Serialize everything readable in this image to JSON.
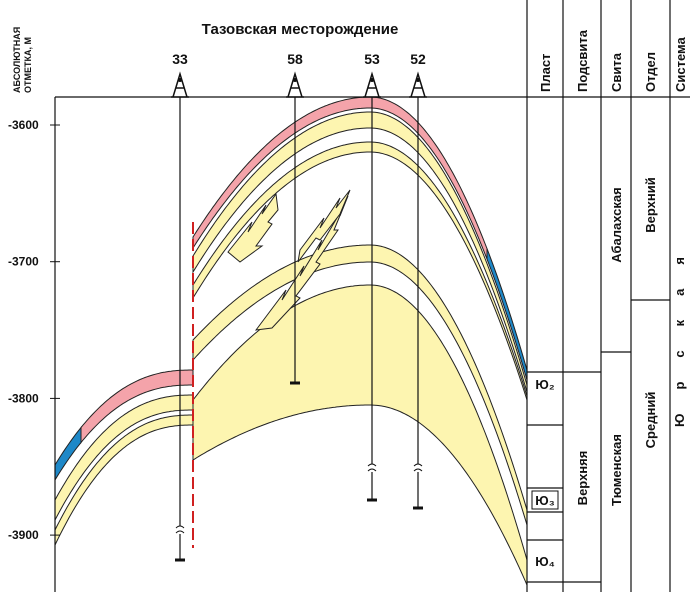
{
  "title": "Тазовская месторождение",
  "axis": {
    "label_lines": [
      "АБСОЛЮТНАЯ",
      "ОТМЕТКА, М"
    ],
    "ticks": [
      -3600,
      -3700,
      -3800,
      -3900
    ]
  },
  "wells": [
    "33",
    "58",
    "53",
    "52"
  ],
  "columns": {
    "headers": [
      "Пласт",
      "Подсвита",
      "Свита",
      "Отдел",
      "Система"
    ],
    "plast": [
      "Ю₂",
      "Ю₃",
      "Ю₄"
    ],
    "podsvita": [
      "Верхняя"
    ],
    "svita": [
      "Абалахская",
      "Тюменская"
    ],
    "otdel": [
      "Верхний",
      "Средний"
    ],
    "sistema": [
      "Юрская"
    ]
  }
}
